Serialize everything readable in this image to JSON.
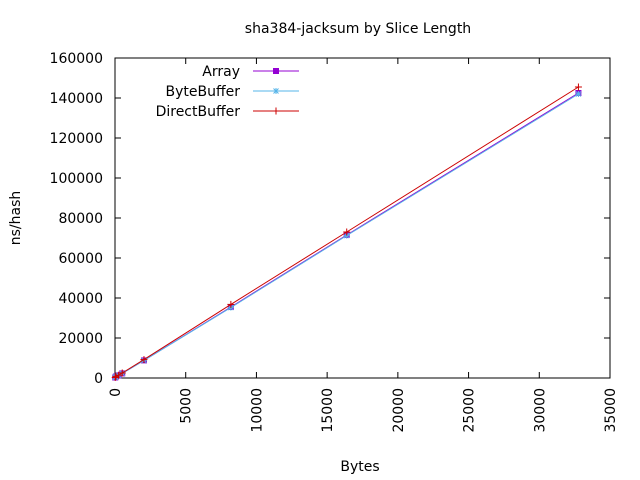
{
  "chart_data": {
    "type": "line",
    "title": "sha384-jacksum by Slice Length",
    "xlabel": "Bytes",
    "ylabel": "ns/hash",
    "xlim": [
      0,
      35000
    ],
    "ylim": [
      0,
      160000
    ],
    "xticks": [
      0,
      5000,
      10000,
      15000,
      20000,
      25000,
      30000,
      35000
    ],
    "yticks": [
      0,
      20000,
      40000,
      60000,
      80000,
      100000,
      120000,
      140000,
      160000
    ],
    "grid": false,
    "legend_position": "top-left",
    "series": [
      {
        "name": "Array",
        "color": "#9400d3",
        "marker": "square",
        "x": [
          16,
          64,
          256,
          512,
          2048,
          8192,
          16384,
          32768
        ],
        "y": [
          250,
          750,
          1300,
          2300,
          8800,
          35500,
          71500,
          142500
        ]
      },
      {
        "name": "ByteBuffer",
        "color": "#56b4e9",
        "marker": "star",
        "x": [
          16,
          64,
          256,
          512,
          2048,
          8192,
          16384,
          32768
        ],
        "y": [
          250,
          750,
          1300,
          2300,
          8800,
          35200,
          71200,
          142000
        ]
      },
      {
        "name": "DirectBuffer",
        "color": "#cc0000",
        "marker": "plus",
        "x": [
          16,
          64,
          256,
          512,
          2048,
          8192,
          16384,
          32768
        ],
        "y": [
          260,
          800,
          1400,
          2500,
          9200,
          36800,
          73000,
          145500
        ]
      }
    ]
  }
}
